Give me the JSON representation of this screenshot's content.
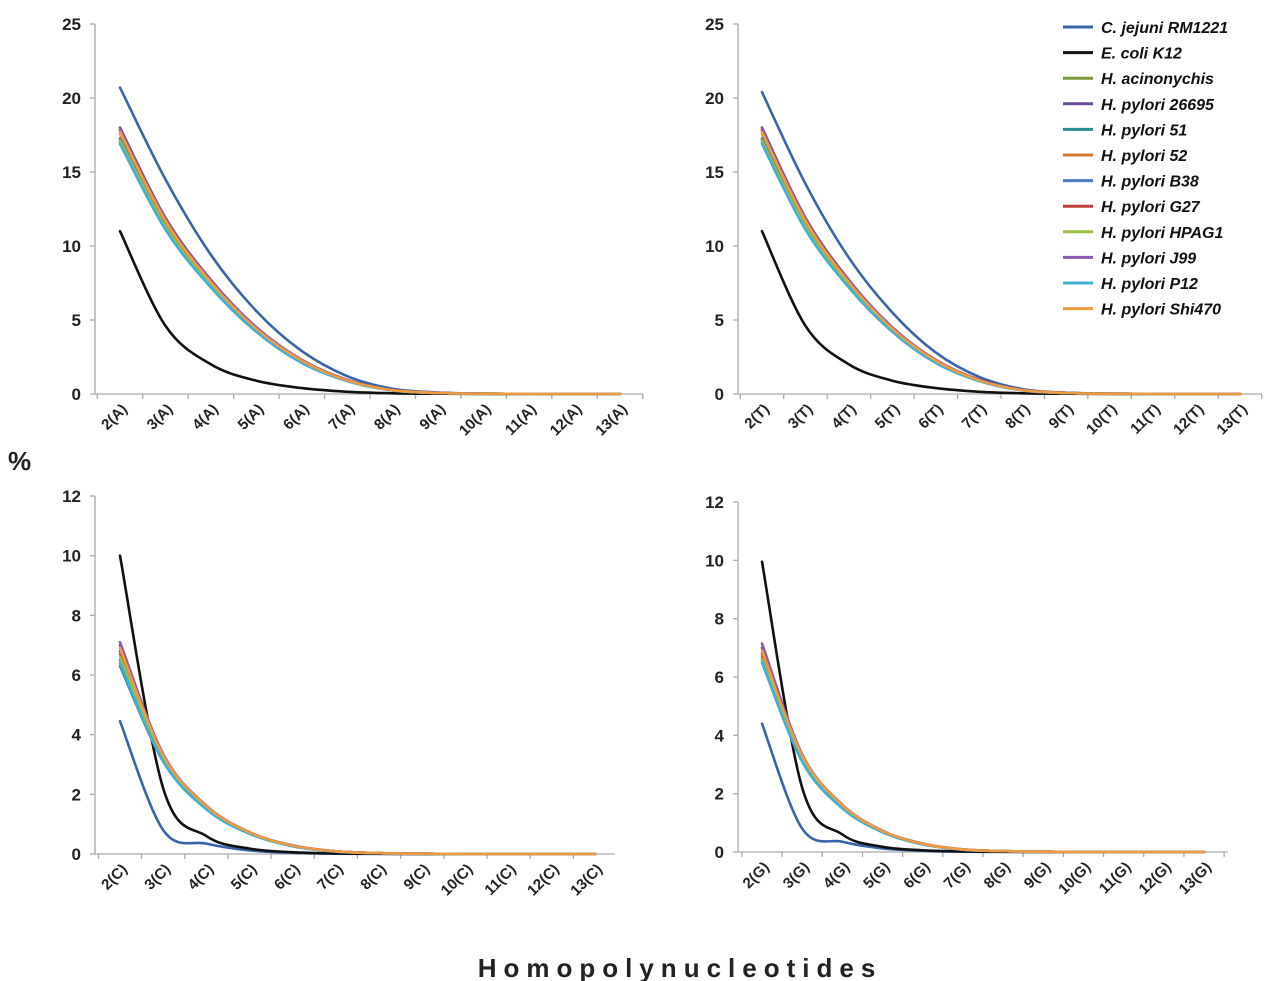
{
  "figure": {
    "ylabel": "%",
    "xlabel": "Homopolynucleotides"
  },
  "series_meta": [
    {
      "name": "C. jejuni RM1221",
      "color": "#3a64a8"
    },
    {
      "name": "E. coli K12",
      "color": "#111111"
    },
    {
      "name": "H. acinonychis",
      "color": "#7a9a3a"
    },
    {
      "name": "H. pylori 26695",
      "color": "#6a4a9a"
    },
    {
      "name": "H. pylori 51",
      "color": "#2a8a96"
    },
    {
      "name": "H. pylori 52",
      "color": "#d07a30"
    },
    {
      "name": "H. pylori B38",
      "color": "#4a7cc0"
    },
    {
      "name": "H. pylori G27",
      "color": "#c0403a"
    },
    {
      "name": "H. pylori HPAG1",
      "color": "#9ac040"
    },
    {
      "name": "H. pylori J99",
      "color": "#8a5ab0"
    },
    {
      "name": "H. pylori P12",
      "color": "#40b0d0"
    },
    {
      "name": "H. pylori Shi470",
      "color": "#f09a40"
    }
  ],
  "chart_data": [
    {
      "type": "line",
      "panel": "A",
      "categories": [
        "2(A)",
        "3(A)",
        "4(A)",
        "5(A)",
        "6(A)",
        "7(A)",
        "8(A)",
        "9(A)",
        "10(A)",
        "11(A)",
        "12(A)",
        "13(A)"
      ],
      "ylim": [
        0,
        25
      ],
      "yticks": [
        0,
        5,
        10,
        15,
        20,
        25
      ],
      "series": [
        {
          "name": "C. jejuni RM1221",
          "values": [
            20.7,
            14.5,
            9.4,
            5.6,
            2.9,
            1.2,
            0.35,
            0.1,
            0.03,
            0.01,
            0.0,
            0.0
          ]
        },
        {
          "name": "E. coli K12",
          "values": [
            11.0,
            4.6,
            2.0,
            0.9,
            0.4,
            0.15,
            0.05,
            0.02,
            0.0,
            0.0,
            0.0,
            0.0
          ]
        },
        {
          "name": "H. acinonychis",
          "values": [
            17.3,
            11.4,
            7.4,
            4.3,
            2.2,
            0.9,
            0.25,
            0.07,
            0.02,
            0.01,
            0.0,
            0.0
          ]
        },
        {
          "name": "H. pylori 26695",
          "values": [
            18.0,
            11.9,
            7.7,
            4.5,
            2.3,
            0.95,
            0.27,
            0.08,
            0.02,
            0.01,
            0.0,
            0.0
          ]
        },
        {
          "name": "H. pylori 51",
          "values": [
            17.0,
            11.2,
            7.2,
            4.2,
            2.1,
            0.88,
            0.25,
            0.07,
            0.02,
            0.01,
            0.0,
            0.0
          ]
        },
        {
          "name": "H. pylori 52",
          "values": [
            17.6,
            11.6,
            7.5,
            4.4,
            2.25,
            0.92,
            0.26,
            0.07,
            0.02,
            0.01,
            0.0,
            0.0
          ]
        },
        {
          "name": "H. pylori B38",
          "values": [
            17.2,
            11.3,
            7.3,
            4.25,
            2.15,
            0.9,
            0.25,
            0.07,
            0.02,
            0.01,
            0.0,
            0.0
          ]
        },
        {
          "name": "H. pylori G27",
          "values": [
            17.8,
            11.7,
            7.6,
            4.45,
            2.3,
            0.94,
            0.27,
            0.08,
            0.02,
            0.01,
            0.0,
            0.0
          ]
        },
        {
          "name": "H. pylori HPAG1",
          "values": [
            17.1,
            11.3,
            7.3,
            4.25,
            2.15,
            0.9,
            0.25,
            0.07,
            0.02,
            0.01,
            0.0,
            0.0
          ]
        },
        {
          "name": "H. pylori J99",
          "values": [
            17.9,
            11.8,
            7.65,
            4.5,
            2.3,
            0.95,
            0.27,
            0.08,
            0.02,
            0.01,
            0.0,
            0.0
          ]
        },
        {
          "name": "H. pylori P12",
          "values": [
            16.9,
            11.1,
            7.2,
            4.2,
            2.1,
            0.87,
            0.24,
            0.07,
            0.02,
            0.01,
            0.0,
            0.0
          ]
        },
        {
          "name": "H. pylori Shi470",
          "values": [
            17.7,
            11.7,
            7.55,
            4.4,
            2.25,
            0.92,
            0.26,
            0.07,
            0.02,
            0.01,
            0.0,
            0.0
          ]
        }
      ]
    },
    {
      "type": "line",
      "panel": "T",
      "categories": [
        "2(T)",
        "3(T)",
        "4(T)",
        "5(T)",
        "6(T)",
        "7(T)",
        "8(T)",
        "9(T)",
        "10(T)",
        "11(T)",
        "12(T)",
        "13(T)"
      ],
      "ylim": [
        0,
        25
      ],
      "yticks": [
        0,
        5,
        10,
        15,
        20,
        25
      ],
      "series": [
        {
          "name": "C. jejuni RM1221",
          "values": [
            20.4,
            14.2,
            9.2,
            5.5,
            2.8,
            1.15,
            0.33,
            0.09,
            0.03,
            0.01,
            0.0,
            0.0
          ]
        },
        {
          "name": "E. coli K12",
          "values": [
            11.0,
            4.6,
            2.0,
            0.9,
            0.4,
            0.15,
            0.05,
            0.02,
            0.0,
            0.0,
            0.0,
            0.0
          ]
        },
        {
          "name": "H. acinonychis",
          "values": [
            17.3,
            11.4,
            7.4,
            4.3,
            2.2,
            0.9,
            0.25,
            0.07,
            0.02,
            0.01,
            0.0,
            0.0
          ]
        },
        {
          "name": "H. pylori 26695",
          "values": [
            18.0,
            11.9,
            7.7,
            4.5,
            2.3,
            0.95,
            0.27,
            0.08,
            0.02,
            0.01,
            0.0,
            0.0
          ]
        },
        {
          "name": "H. pylori 51",
          "values": [
            17.0,
            11.2,
            7.2,
            4.2,
            2.1,
            0.88,
            0.25,
            0.07,
            0.02,
            0.01,
            0.0,
            0.0
          ]
        },
        {
          "name": "H. pylori 52",
          "values": [
            17.6,
            11.6,
            7.5,
            4.4,
            2.25,
            0.92,
            0.26,
            0.07,
            0.02,
            0.01,
            0.0,
            0.0
          ]
        },
        {
          "name": "H. pylori B38",
          "values": [
            17.2,
            11.3,
            7.3,
            4.25,
            2.15,
            0.9,
            0.25,
            0.07,
            0.02,
            0.01,
            0.0,
            0.0
          ]
        },
        {
          "name": "H. pylori G27",
          "values": [
            17.8,
            11.7,
            7.6,
            4.45,
            2.3,
            0.94,
            0.27,
            0.08,
            0.02,
            0.01,
            0.0,
            0.0
          ]
        },
        {
          "name": "H. pylori HPAG1",
          "values": [
            17.1,
            11.3,
            7.3,
            4.25,
            2.15,
            0.9,
            0.25,
            0.07,
            0.02,
            0.01,
            0.0,
            0.0
          ]
        },
        {
          "name": "H. pylori J99",
          "values": [
            17.9,
            11.8,
            7.65,
            4.5,
            2.3,
            0.95,
            0.27,
            0.08,
            0.02,
            0.01,
            0.0,
            0.0
          ]
        },
        {
          "name": "H. pylori P12",
          "values": [
            16.9,
            11.1,
            7.2,
            4.2,
            2.1,
            0.87,
            0.24,
            0.07,
            0.02,
            0.01,
            0.0,
            0.0
          ]
        },
        {
          "name": "H. pylori Shi470",
          "values": [
            17.7,
            11.7,
            7.55,
            4.4,
            2.25,
            0.92,
            0.26,
            0.07,
            0.02,
            0.01,
            0.0,
            0.0
          ]
        }
      ]
    },
    {
      "type": "line",
      "panel": "C",
      "categories": [
        "2(C)",
        "3(C)",
        "4(C)",
        "5(C)",
        "6(C)",
        "7(C)",
        "8(C)",
        "9(C)",
        "10(C)",
        "11(C)",
        "12(C)",
        "13(C)"
      ],
      "ylim": [
        0,
        12
      ],
      "yticks": [
        0,
        2,
        4,
        6,
        8,
        10,
        12
      ],
      "series": [
        {
          "name": "C. jejuni RM1221",
          "values": [
            4.45,
            0.8,
            0.35,
            0.12,
            0.04,
            0.01,
            0.0,
            0.0,
            0.0,
            0.0,
            0.0,
            0.0
          ]
        },
        {
          "name": "E. coli K12",
          "values": [
            10.0,
            2.2,
            0.6,
            0.18,
            0.06,
            0.02,
            0.01,
            0.0,
            0.0,
            0.0,
            0.0,
            0.0
          ]
        },
        {
          "name": "H. acinonychis",
          "values": [
            6.7,
            3.2,
            1.55,
            0.7,
            0.27,
            0.09,
            0.03,
            0.01,
            0.0,
            0.0,
            0.0,
            0.0
          ]
        },
        {
          "name": "H. pylori 26695",
          "values": [
            7.0,
            3.3,
            1.6,
            0.72,
            0.28,
            0.09,
            0.03,
            0.01,
            0.0,
            0.0,
            0.0,
            0.0
          ]
        },
        {
          "name": "H. pylori 51",
          "values": [
            6.3,
            3.1,
            1.5,
            0.68,
            0.26,
            0.08,
            0.03,
            0.01,
            0.0,
            0.0,
            0.0,
            0.0
          ]
        },
        {
          "name": "H. pylori 52",
          "values": [
            6.9,
            3.3,
            1.6,
            0.72,
            0.28,
            0.09,
            0.03,
            0.01,
            0.0,
            0.0,
            0.0,
            0.0
          ]
        },
        {
          "name": "H. pylori B38",
          "values": [
            6.5,
            3.15,
            1.52,
            0.69,
            0.27,
            0.09,
            0.03,
            0.01,
            0.0,
            0.0,
            0.0,
            0.0
          ]
        },
        {
          "name": "H. pylori G27",
          "values": [
            6.8,
            3.25,
            1.58,
            0.71,
            0.28,
            0.09,
            0.03,
            0.01,
            0.0,
            0.0,
            0.0,
            0.0
          ]
        },
        {
          "name": "H. pylori HPAG1",
          "values": [
            6.6,
            3.2,
            1.55,
            0.7,
            0.27,
            0.09,
            0.03,
            0.01,
            0.0,
            0.0,
            0.0,
            0.0
          ]
        },
        {
          "name": "H. pylori J99",
          "values": [
            7.1,
            3.35,
            1.62,
            0.73,
            0.29,
            0.09,
            0.03,
            0.01,
            0.0,
            0.0,
            0.0,
            0.0
          ]
        },
        {
          "name": "H. pylori P12",
          "values": [
            6.4,
            3.1,
            1.5,
            0.68,
            0.26,
            0.08,
            0.03,
            0.01,
            0.0,
            0.0,
            0.0,
            0.0
          ]
        },
        {
          "name": "H. pylori Shi470",
          "values": [
            6.9,
            3.3,
            1.6,
            0.72,
            0.28,
            0.09,
            0.03,
            0.01,
            0.0,
            0.0,
            0.0,
            0.0
          ]
        }
      ]
    },
    {
      "type": "line",
      "panel": "G",
      "categories": [
        "2(G)",
        "3(G)",
        "4(G)",
        "5(G)",
        "6(G)",
        "7(G)",
        "8(G)",
        "9(G)",
        "10(G)",
        "11(G)",
        "12(G)",
        "13(G)"
      ],
      "ylim": [
        0,
        12
      ],
      "yticks": [
        0,
        2,
        4,
        6,
        8,
        10,
        12
      ],
      "series": [
        {
          "name": "C. jejuni RM1221",
          "values": [
            4.4,
            0.8,
            0.35,
            0.12,
            0.04,
            0.01,
            0.0,
            0.0,
            0.0,
            0.0,
            0.0,
            0.0
          ]
        },
        {
          "name": "E. coli K12",
          "values": [
            9.95,
            2.2,
            0.6,
            0.18,
            0.06,
            0.02,
            0.01,
            0.0,
            0.0,
            0.0,
            0.0,
            0.0
          ]
        },
        {
          "name": "H. acinonychis",
          "values": [
            6.7,
            3.2,
            1.55,
            0.7,
            0.27,
            0.09,
            0.03,
            0.01,
            0.0,
            0.0,
            0.0,
            0.0
          ]
        },
        {
          "name": "H. pylori 26695",
          "values": [
            7.0,
            3.3,
            1.6,
            0.72,
            0.28,
            0.09,
            0.03,
            0.01,
            0.0,
            0.0,
            0.0,
            0.0
          ]
        },
        {
          "name": "H. pylori 51",
          "values": [
            6.5,
            3.1,
            1.5,
            0.68,
            0.26,
            0.08,
            0.03,
            0.01,
            0.0,
            0.0,
            0.0,
            0.0
          ]
        },
        {
          "name": "H. pylori 52",
          "values": [
            6.9,
            3.3,
            1.6,
            0.72,
            0.28,
            0.09,
            0.03,
            0.01,
            0.0,
            0.0,
            0.0,
            0.0
          ]
        },
        {
          "name": "H. pylori B38",
          "values": [
            6.6,
            3.15,
            1.52,
            0.69,
            0.27,
            0.09,
            0.03,
            0.01,
            0.0,
            0.0,
            0.0,
            0.0
          ]
        },
        {
          "name": "H. pylori G27",
          "values": [
            6.8,
            3.25,
            1.58,
            0.71,
            0.28,
            0.09,
            0.03,
            0.01,
            0.0,
            0.0,
            0.0,
            0.0
          ]
        },
        {
          "name": "H. pylori HPAG1",
          "values": [
            6.6,
            3.2,
            1.55,
            0.7,
            0.27,
            0.09,
            0.03,
            0.01,
            0.0,
            0.0,
            0.0,
            0.0
          ]
        },
        {
          "name": "H. pylori J99",
          "values": [
            7.15,
            3.35,
            1.62,
            0.73,
            0.29,
            0.09,
            0.03,
            0.01,
            0.0,
            0.0,
            0.0,
            0.0
          ]
        },
        {
          "name": "H. pylori P12",
          "values": [
            6.5,
            3.1,
            1.5,
            0.68,
            0.26,
            0.08,
            0.03,
            0.01,
            0.0,
            0.0,
            0.0,
            0.0
          ]
        },
        {
          "name": "H. pylori Shi470",
          "values": [
            6.9,
            3.3,
            1.6,
            0.72,
            0.28,
            0.09,
            0.03,
            0.01,
            0.0,
            0.0,
            0.0,
            0.0
          ]
        }
      ]
    }
  ]
}
